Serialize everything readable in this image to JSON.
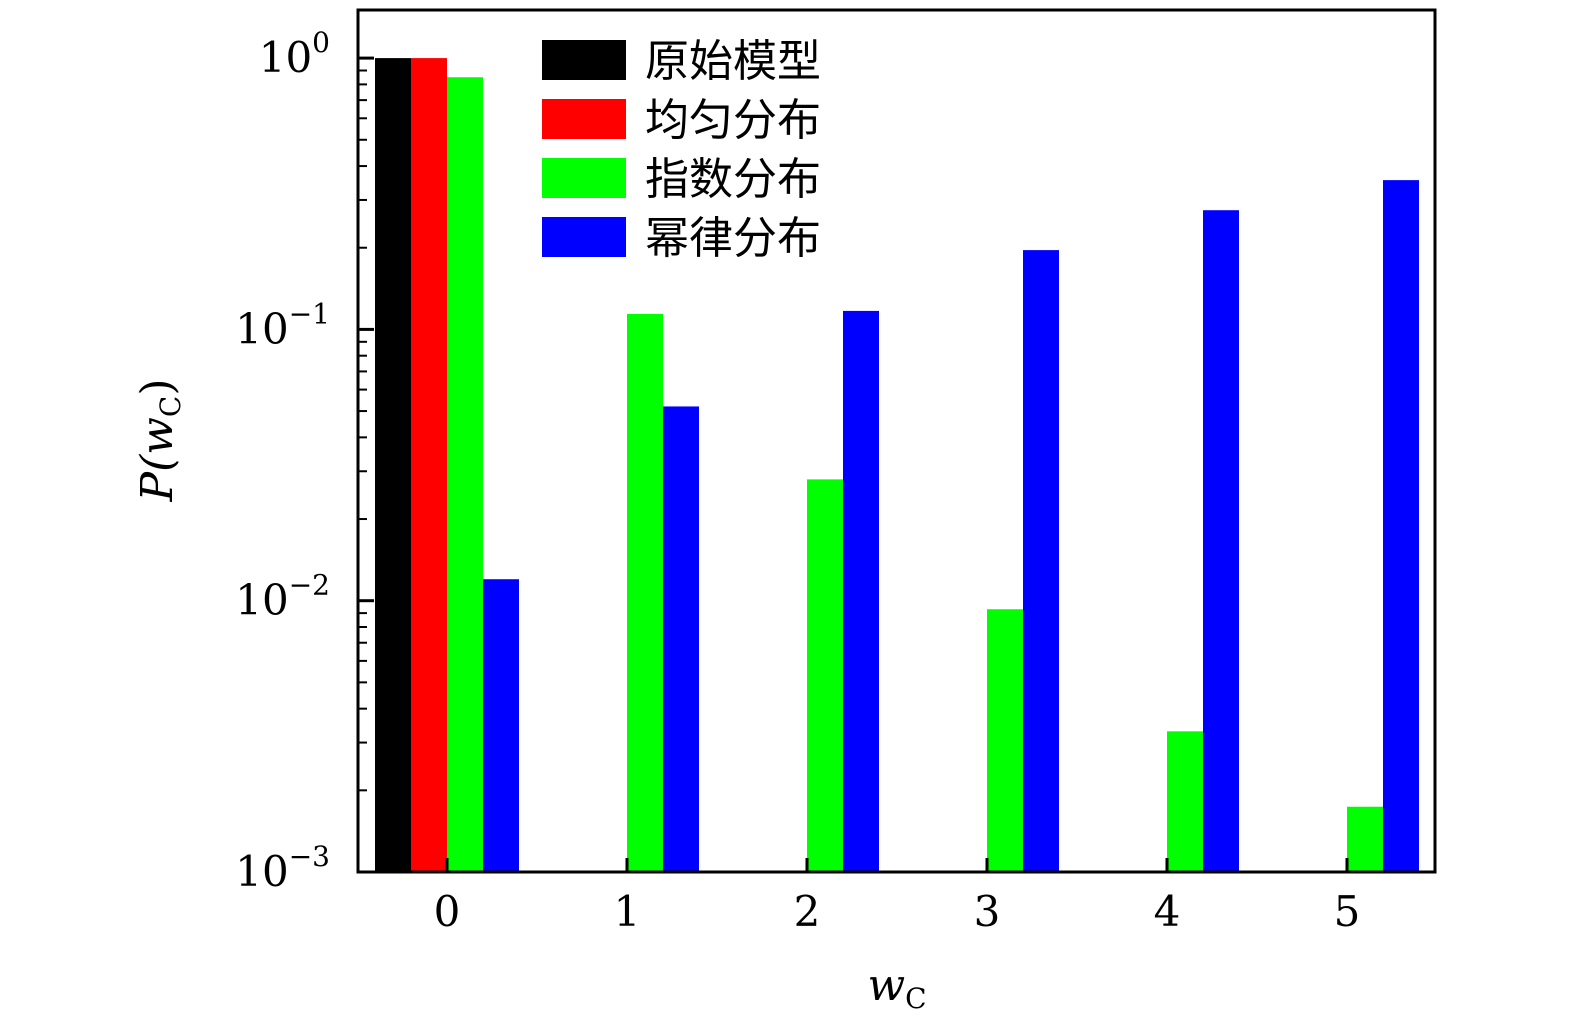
{
  "chart_data": {
    "type": "bar",
    "title": "",
    "xlabel": {
      "main": "w",
      "sub": "C"
    },
    "ylabel": {
      "main": "P(w",
      "sub": "C",
      "close": ")"
    },
    "yscale": "log",
    "ylim": [
      0.001,
      1.5
    ],
    "xlim": [
      -0.5,
      5.5
    ],
    "categories": [
      "0",
      "1",
      "2",
      "3",
      "4",
      "5"
    ],
    "y_tick_labels": [
      {
        "value": 0.001,
        "base": "10",
        "exp": "−3"
      },
      {
        "value": 0.01,
        "base": "10",
        "exp": "−2"
      },
      {
        "value": 0.1,
        "base": "10",
        "exp": "−1"
      },
      {
        "value": 1,
        "base": "10",
        "exp": "0"
      }
    ],
    "grid": false,
    "legend_position": "top-left",
    "series": [
      {
        "name": "原始模型",
        "color": "#000000",
        "values": [
          1.0,
          null,
          null,
          null,
          null,
          null
        ]
      },
      {
        "name": "均匀分布",
        "color": "#ff0000",
        "values": [
          1.0,
          null,
          null,
          null,
          null,
          null
        ]
      },
      {
        "name": "指数分布",
        "color": "#00ff00",
        "values": [
          0.85,
          0.114,
          0.028,
          0.0093,
          0.0033,
          0.00174
        ]
      },
      {
        "name": "幂律分布",
        "color": "#0000ff",
        "values": [
          0.012,
          0.052,
          0.117,
          0.196,
          0.275,
          0.355
        ]
      }
    ]
  }
}
